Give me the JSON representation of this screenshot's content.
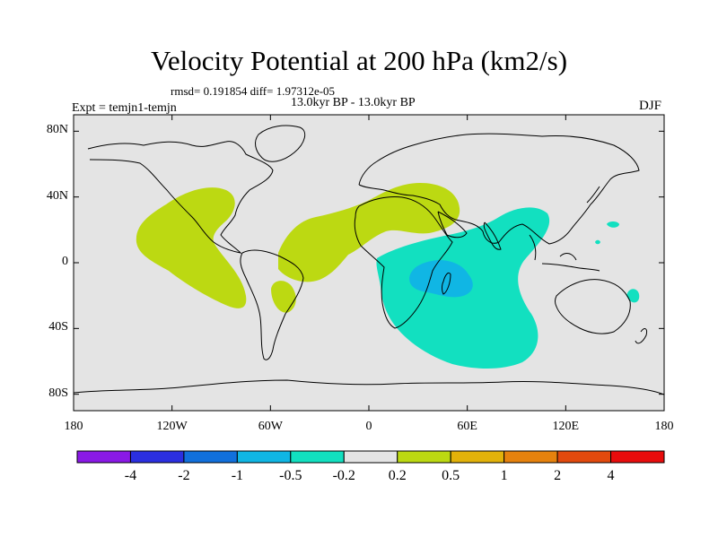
{
  "title": "Velocity Potential at 200 hPa (km2/s)",
  "stats_line": "rmsd= 0.191854 diff= 1.97312e-05",
  "period_line": "13.0kyr BP - 13.0kyr BP",
  "experiment_label": "Expt = temjn1-temjn",
  "season_label": "DJF",
  "map_extent": {
    "lon": [
      -180,
      180
    ],
    "lat": [
      -90,
      90
    ]
  },
  "lat_ticks": [
    {
      "label": "80N",
      "value": 80
    },
    {
      "label": "40N",
      "value": 40
    },
    {
      "label": "0",
      "value": 0
    },
    {
      "label": "40S",
      "value": -40
    },
    {
      "label": "80S",
      "value": -80
    }
  ],
  "lon_ticks": [
    {
      "label": "180",
      "value": -180
    },
    {
      "label": "120W",
      "value": -120
    },
    {
      "label": "60W",
      "value": -60
    },
    {
      "label": "0",
      "value": 0
    },
    {
      "label": "60E",
      "value": 60
    },
    {
      "label": "120E",
      "value": 120
    },
    {
      "label": "180",
      "value": 180
    }
  ],
  "colorbar": {
    "colors": [
      "#8a19e6",
      "#2b2fe0",
      "#1170dc",
      "#10b6e4",
      "#12e0c0",
      "#e4e4e4",
      "#bcd912",
      "#e2b20a",
      "#e6820e",
      "#e24a0e",
      "#e80c0c"
    ],
    "labels": [
      "-4",
      "-2",
      "-1",
      "-0.5",
      "-0.2",
      "0.2",
      "0.5",
      "1",
      "2",
      "4"
    ]
  },
  "colors": {
    "background_field": "#e4e4e4",
    "positive_weak": "#bcd912",
    "negative_weak": "#12e0c0",
    "negative_mid": "#10b6e4",
    "coast": "#000000"
  }
}
